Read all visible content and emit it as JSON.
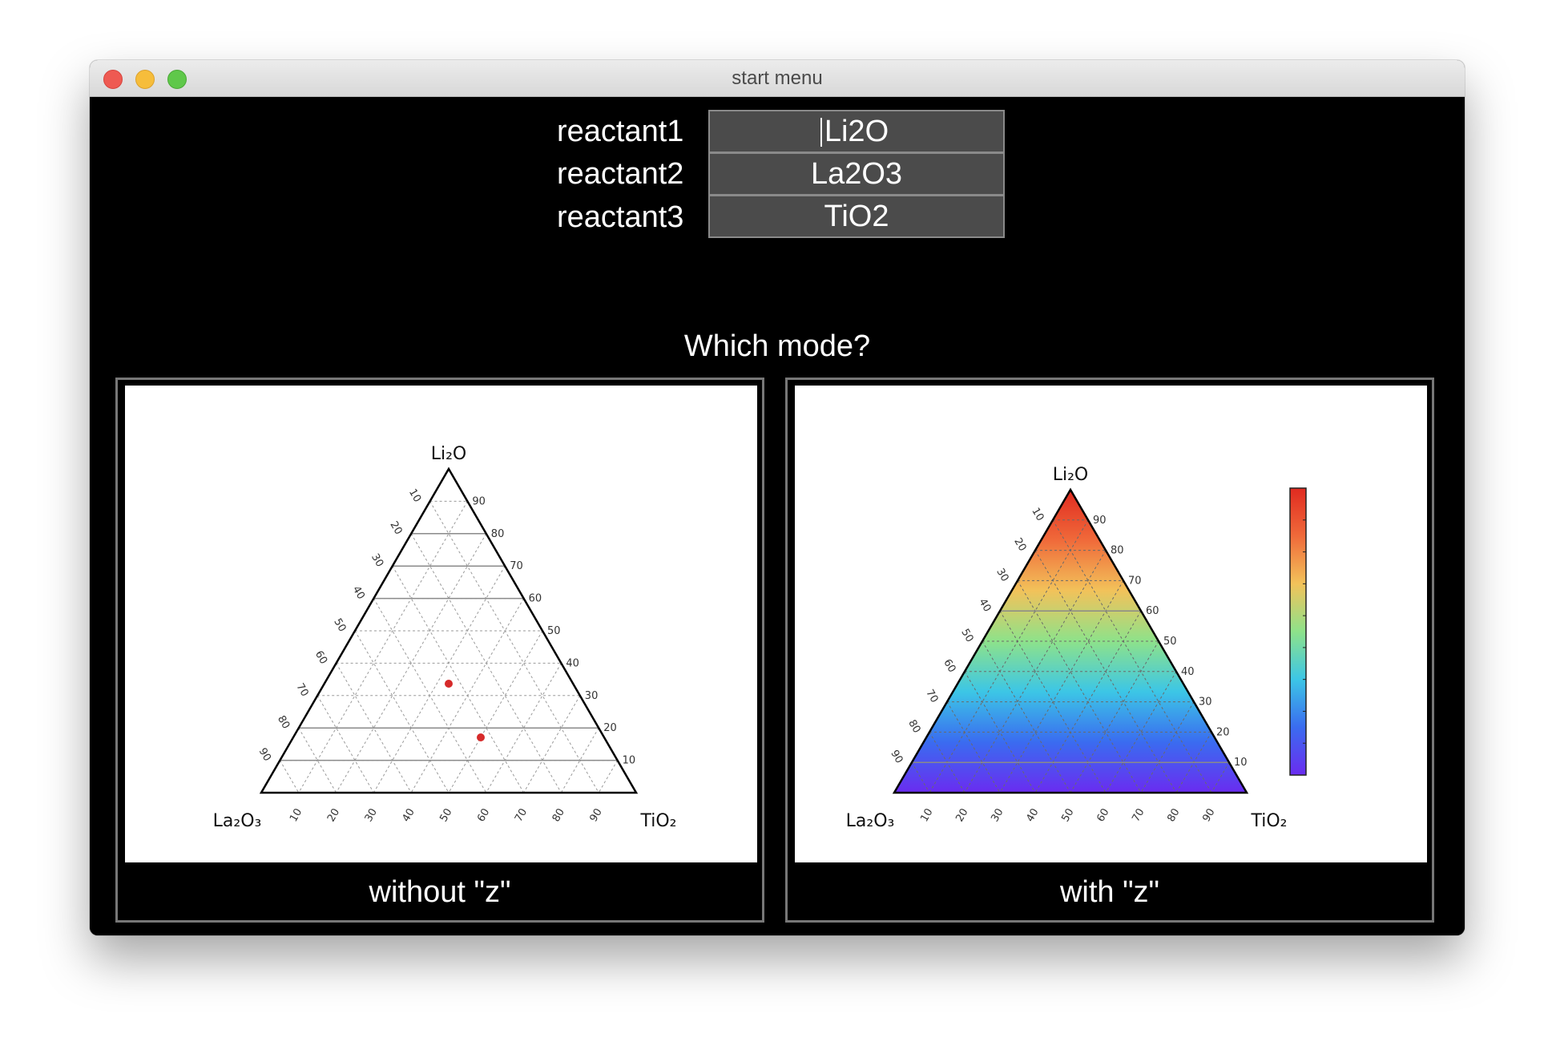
{
  "window": {
    "title": "start menu"
  },
  "form": {
    "rows": [
      {
        "label": "reactant1",
        "value": "Li2O"
      },
      {
        "label": "reactant2",
        "value": "La2O3"
      },
      {
        "label": "reactant3",
        "value": "TiO2"
      }
    ]
  },
  "mode": {
    "prompt": "Which mode?",
    "without_z": {
      "caption": "without \"z\""
    },
    "with_z": {
      "caption": "with \"z\""
    }
  },
  "ternary": {
    "top": "Li₂O",
    "left": "La₂O₃",
    "right": "TiO₂",
    "ticks": [
      "10",
      "20",
      "30",
      "40",
      "50",
      "60",
      "70",
      "80",
      "90"
    ],
    "point_color": "#d62a2a"
  },
  "colorbar": {
    "colors": [
      "#6a2cf0",
      "#3a6cf0",
      "#3cc6e6",
      "#8ee28a",
      "#f2c25a",
      "#f06a3a",
      "#e02a20"
    ]
  }
}
